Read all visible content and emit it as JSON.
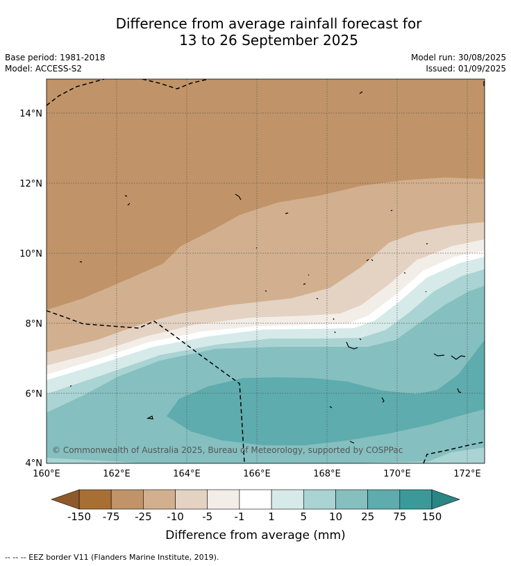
{
  "title_line1": "Difference from average rainfall forecast for",
  "title_line2": "13 to 26 September 2025",
  "base_period": "Base period: 1981-2018",
  "model": "Model: ACCESS-S2",
  "model_run": "Model run: 30/08/2025",
  "issued": "Issued: 01/09/2025",
  "copyright": "© Commonwealth of Australia 2025, Bureau of Meteorology, supported by COSPPac",
  "footnote": "--  --  -- EEZ border V11 (Flanders Marine Institute, 2019).",
  "chart_data": {
    "type": "heatmap",
    "lon_range": [
      160,
      172.5
    ],
    "lat_range": [
      4,
      15
    ],
    "x_ticks": [
      "160°E",
      "162°E",
      "164°E",
      "166°E",
      "168°E",
      "170°E",
      "172°E"
    ],
    "y_ticks": [
      "4°N",
      "6°N",
      "8°N",
      "10°N",
      "12°N",
      "14°N"
    ],
    "colorbar": {
      "title": "Difference from average (mm)",
      "labels": [
        "-150",
        "-75",
        "-25",
        "-10",
        "-5",
        "-1",
        "1",
        "5",
        "10",
        "25",
        "75",
        "150"
      ],
      "colors": [
        "#a86f35",
        "#c09468",
        "#d2b08f",
        "#e4d2c3",
        "#f3ede7",
        "#ffffff",
        "#d6eae9",
        "#aad3d3",
        "#85bfc0",
        "#5eacad",
        "#3a9a9a"
      ],
      "under_color": "#8e5a2a",
      "over_color": "#2b8585"
    }
  }
}
